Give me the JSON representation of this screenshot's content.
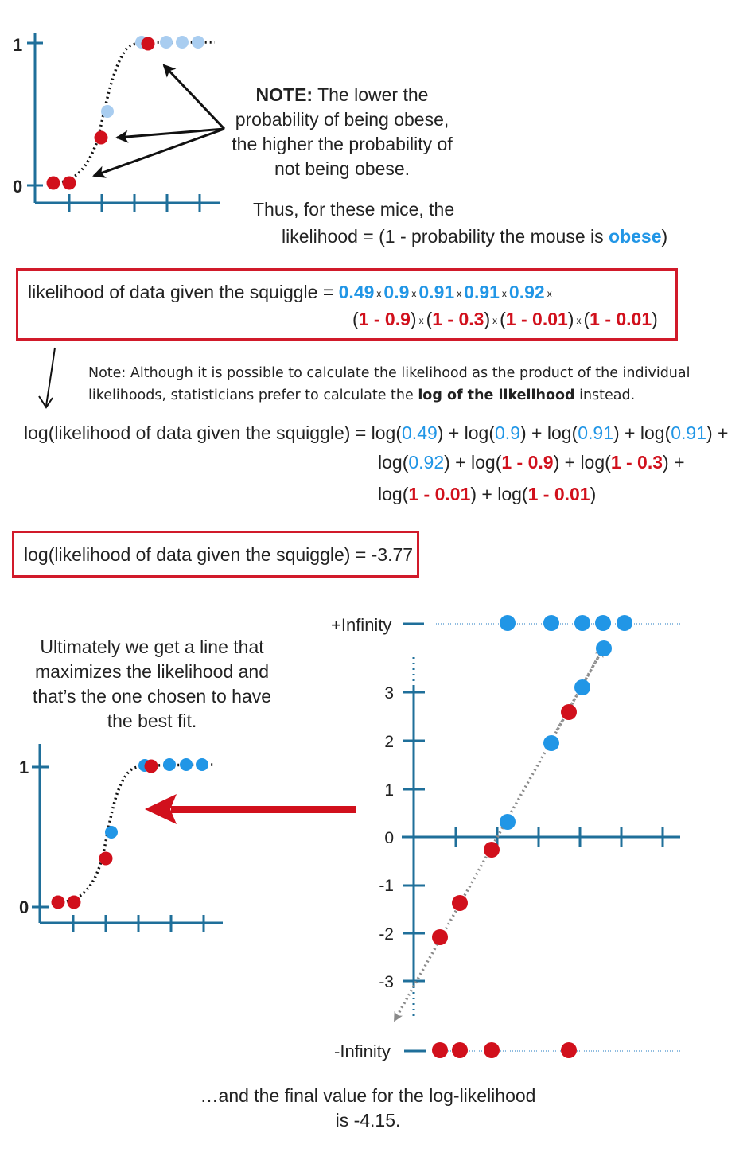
{
  "top_plot": {
    "y_tick_top": "1",
    "y_tick_bottom": "0"
  },
  "note1": {
    "bold": "NOTE:",
    "text": " The lower the probability of being obese, the higher the probability of not being obese."
  },
  "thus": {
    "line1": "Thus, for these mice, the",
    "line2_prefix": "likelihood = (1 - probability the mouse is ",
    "line2_highlight": "obese",
    "line2_suffix": ")"
  },
  "likelihood_box": {
    "label": "likelihood of data given the squiggle = ",
    "times": "x",
    "blue_terms": [
      "0.49",
      "0.9",
      "0.91",
      "0.91",
      "0.92"
    ],
    "red_terms": [
      "1 - 0.9",
      "1 - 0.3",
      "1 - 0.01",
      "1 - 0.01"
    ]
  },
  "note2": {
    "text_before": "Note: Although it is possible to calculate the likelihood as the product of the individual likelihoods, statisticians prefer to calculate the ",
    "bold": "log of the likelihood",
    "text_after": " instead."
  },
  "log_expansion": {
    "label": "log(likelihood of data given the squiggle) = ",
    "blue_terms": [
      "0.49",
      "0.9",
      "0.91",
      "0.91",
      "0.92"
    ],
    "red_terms": [
      "1 - 0.9",
      "1 - 0.3",
      "1 - 0.01",
      "1 - 0.01"
    ]
  },
  "result_box": {
    "text": "log(likelihood of data given the squiggle) = -3.77"
  },
  "note3": {
    "text": "Ultimately we get a line that maximizes the likelihood and that’s the one chosen to have the best fit."
  },
  "bottom_left_plot": {
    "y_tick_top": "1",
    "y_tick_bottom": "0"
  },
  "log_odds_plot": {
    "plus_infinity": "+Infinity",
    "minus_infinity": "-Infinity",
    "y_ticks": [
      "3",
      "2",
      "1",
      "0",
      "-1",
      "-2",
      "-3"
    ]
  },
  "final": {
    "text": "…and the final value for the log-likelihood is -4.15."
  },
  "colors": {
    "blue": "#2196e6",
    "light_blue": "#a9cdf0",
    "red": "#d1101c",
    "axis": "#1f6f9a",
    "box_border": "#d11a2a"
  }
}
